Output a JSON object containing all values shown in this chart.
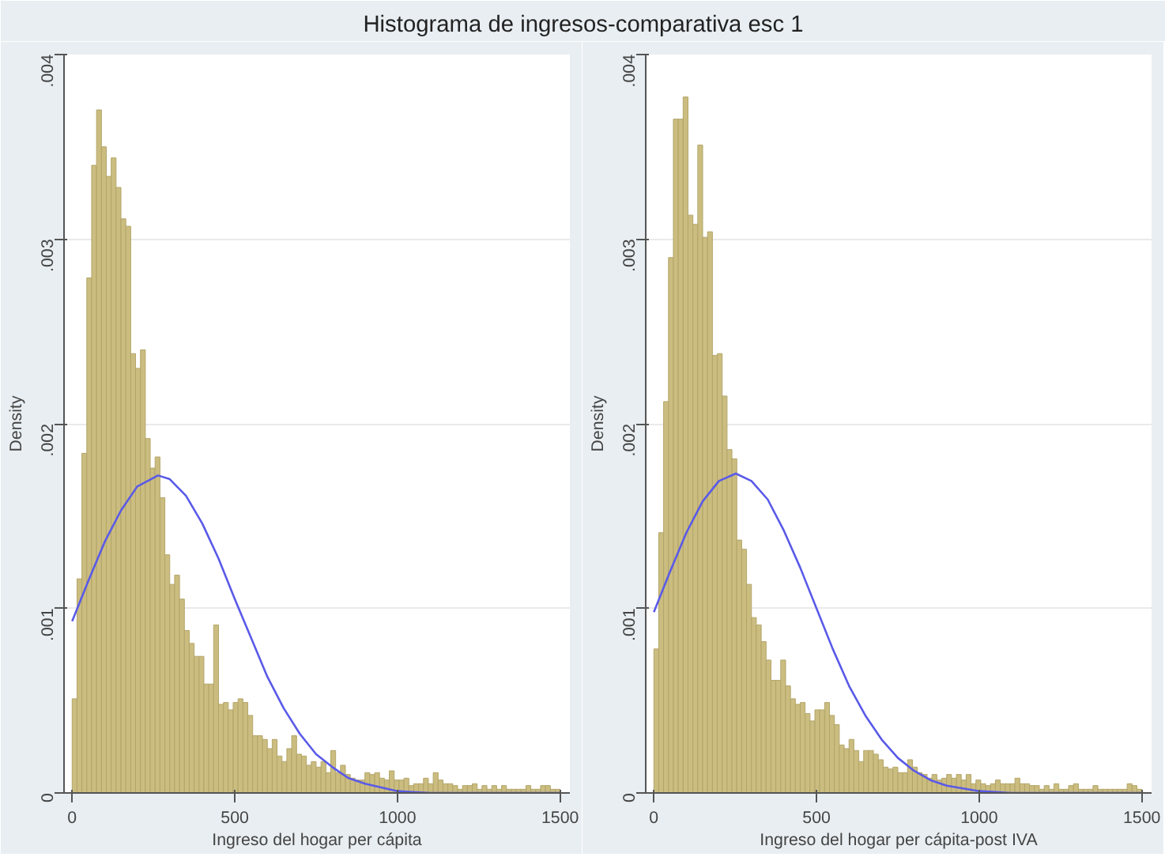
{
  "chart_data": [
    {
      "type": "histogram",
      "title": "Histograma de ingresos-comparativa esc 1",
      "xlabel": "Ingreso del hogar per cápita",
      "ylabel": "Density",
      "bins": [
        0,
        15,
        30,
        45,
        60,
        75,
        90,
        105,
        120,
        135,
        150,
        165,
        180,
        195,
        210,
        225,
        240,
        255,
        270,
        285,
        300,
        315,
        330,
        345,
        360,
        375,
        390,
        405,
        420,
        435,
        450,
        465,
        480,
        495,
        510,
        525,
        540,
        555,
        570,
        585,
        600,
        615,
        630,
        645,
        660,
        675,
        690,
        705,
        720,
        735,
        750,
        765,
        780,
        795,
        810,
        825,
        840,
        855,
        870,
        885,
        900,
        915,
        930,
        945,
        960,
        975,
        990,
        1005,
        1020,
        1035,
        1050,
        1065,
        1080,
        1095,
        1110,
        1125,
        1140,
        1155,
        1170,
        1185,
        1200,
        1215,
        1230,
        1245,
        1260,
        1275,
        1290,
        1305,
        1320,
        1335,
        1350,
        1365,
        1380,
        1395,
        1410,
        1425,
        1440,
        1455,
        1470,
        1485,
        1500
      ],
      "xlim": [
        -25,
        1530
      ],
      "ylim": [
        0,
        0.004
      ],
      "xticks": [
        0,
        500,
        1000,
        1500
      ],
      "yticks": [
        {
          "value": 0,
          "label": "0"
        },
        {
          "value": 0.001,
          "label": ".001"
        },
        {
          "value": 0.002,
          "label": ".002"
        },
        {
          "value": 0.003,
          "label": ".003"
        },
        {
          "value": 0.004,
          "label": ".004"
        }
      ],
      "grid": "y",
      "series": [
        {
          "color": "#cbbd80",
          "values": [
            0.00051,
            0.00116,
            0.00184,
            0.00279,
            0.0034,
            0.0037,
            0.0035,
            0.00334,
            0.00344,
            0.00328,
            0.00311,
            0.00307,
            0.00238,
            0.0023,
            0.0024,
            0.00192,
            0.00176,
            0.00182,
            0.0016,
            0.00129,
            0.00113,
            0.00118,
            0.00105,
            0.00088,
            0.00081,
            0.00074,
            0.00074,
            0.00059,
            0.00059,
            0.00091,
            0.00048,
            0.00049,
            0.00045,
            0.00049,
            0.00051,
            0.00049,
            0.00042,
            0.00031,
            0.00031,
            0.00029,
            0.00024,
            0.00029,
            0.0002,
            0.00017,
            0.00024,
            0.00031,
            0.00021,
            0.0002,
            0.00015,
            0.00017,
            0.00014,
            0.00017,
            0.00011,
            0.00023,
            0.00011,
            0.00015,
            0.0001,
            8e-05,
            7e-05,
            7e-05,
            0.00011,
            0.0001,
            0.00011,
            8e-05,
            7e-05,
            0.00012,
            7e-05,
            7e-05,
            8e-05,
            4e-05,
            5e-05,
            5e-05,
            8e-05,
            5e-05,
            0.00011,
            7e-05,
            5e-05,
            5e-05,
            4e-05,
            2e-05,
            4e-05,
            4e-05,
            5e-05,
            2e-05,
            4e-05,
            2e-05,
            4e-05,
            2e-05,
            4e-05,
            2e-05,
            2e-05,
            2e-05,
            2e-05,
            4e-05,
            2e-05,
            2e-05,
            4e-05,
            4e-05,
            2e-05,
            2e-05
          ]
        },
        {
          "type": "line",
          "color": "#5a5ae8",
          "x": [
            0,
            50,
            100,
            150,
            200,
            264,
            300,
            350,
            400,
            450,
            500,
            550,
            600,
            650,
            700,
            750,
            800,
            850,
            900,
            1000,
            1100,
            1200,
            1500
          ],
          "values": [
            0.00093,
            0.00115,
            0.00136,
            0.00153,
            0.00166,
            0.00172,
            0.0017,
            0.00161,
            0.00146,
            0.00127,
            0.00105,
            0.00084,
            0.00063,
            0.00046,
            0.00032,
            0.00021,
            0.00014,
            8e-05,
            5e-05,
            1e-05,
            0,
            0,
            0
          ]
        }
      ]
    },
    {
      "type": "histogram",
      "xlabel": "Ingreso del hogar per cápita-post IVA",
      "ylabel": "Density",
      "bins": [
        0,
        15,
        30,
        45,
        60,
        75,
        90,
        105,
        120,
        135,
        150,
        165,
        180,
        195,
        210,
        225,
        240,
        255,
        270,
        285,
        300,
        315,
        330,
        345,
        360,
        375,
        390,
        405,
        420,
        435,
        450,
        465,
        480,
        495,
        510,
        525,
        540,
        555,
        570,
        585,
        600,
        615,
        630,
        645,
        660,
        675,
        690,
        705,
        720,
        735,
        750,
        765,
        780,
        795,
        810,
        825,
        840,
        855,
        870,
        885,
        900,
        915,
        930,
        945,
        960,
        975,
        990,
        1005,
        1020,
        1035,
        1050,
        1065,
        1080,
        1095,
        1110,
        1125,
        1140,
        1155,
        1170,
        1185,
        1200,
        1215,
        1230,
        1245,
        1260,
        1275,
        1290,
        1305,
        1320,
        1335,
        1350,
        1365,
        1380,
        1395,
        1410,
        1425,
        1440,
        1455,
        1470,
        1485,
        1500
      ],
      "xlim": [
        -25,
        1530
      ],
      "ylim": [
        0,
        0.004
      ],
      "xticks": [
        0,
        500,
        1000,
        1500
      ],
      "yticks": [
        {
          "value": 0,
          "label": "0"
        },
        {
          "value": 0.001,
          "label": ".001"
        },
        {
          "value": 0.002,
          "label": ".002"
        },
        {
          "value": 0.003,
          "label": ".003"
        },
        {
          "value": 0.004,
          "label": ".004"
        }
      ],
      "grid": "y",
      "series": [
        {
          "color": "#cbbd80",
          "values": [
            0.00078,
            0.00141,
            0.00212,
            0.0029,
            0.00365,
            0.00365,
            0.00377,
            0.00313,
            0.00308,
            0.00351,
            0.00301,
            0.00304,
            0.00237,
            0.00238,
            0.00215,
            0.00186,
            0.00181,
            0.00137,
            0.00132,
            0.00113,
            0.00095,
            0.00091,
            0.00082,
            0.00072,
            0.00061,
            0.00061,
            0.00072,
            0.00058,
            0.00051,
            0.00048,
            0.00049,
            0.00043,
            0.00039,
            0.00045,
            0.00045,
            0.00049,
            0.00042,
            0.00037,
            0.00026,
            0.00024,
            0.00029,
            0.00023,
            0.00017,
            0.00023,
            0.00023,
            0.00021,
            0.00018,
            0.00014,
            0.00013,
            0.00014,
            0.00011,
            0.00011,
            0.00018,
            0.00014,
            0.00011,
            0.0001,
            8e-05,
            0.0001,
            7e-05,
            8e-05,
            0.0001,
            8e-05,
            0.0001,
            7e-05,
            0.0001,
            5e-05,
            7e-05,
            5e-05,
            4e-05,
            5e-05,
            7e-05,
            5e-05,
            5e-05,
            5e-05,
            8e-05,
            5e-05,
            5e-05,
            4e-05,
            4e-05,
            2e-05,
            4e-05,
            2e-05,
            5e-05,
            2e-05,
            2e-05,
            4e-05,
            5e-05,
            2e-05,
            2e-05,
            2e-05,
            4e-05,
            2e-05,
            2e-05,
            2e-05,
            2e-05,
            2e-05,
            2e-05,
            5e-05,
            4e-05,
            2e-05
          ]
        },
        {
          "type": "line",
          "color": "#5a5ae8",
          "x": [
            0,
            50,
            100,
            150,
            200,
            252,
            300,
            350,
            400,
            450,
            500,
            550,
            600,
            650,
            700,
            750,
            800,
            850,
            900,
            1000,
            1100,
            1200,
            1500
          ],
          "values": [
            0.00098,
            0.0012,
            0.00141,
            0.00158,
            0.00169,
            0.00173,
            0.00169,
            0.00159,
            0.00142,
            0.00122,
            0.001,
            0.00078,
            0.00058,
            0.00042,
            0.00029,
            0.00019,
            0.00012,
            7e-05,
            4e-05,
            1e-05,
            0,
            0,
            0
          ]
        }
      ]
    }
  ]
}
